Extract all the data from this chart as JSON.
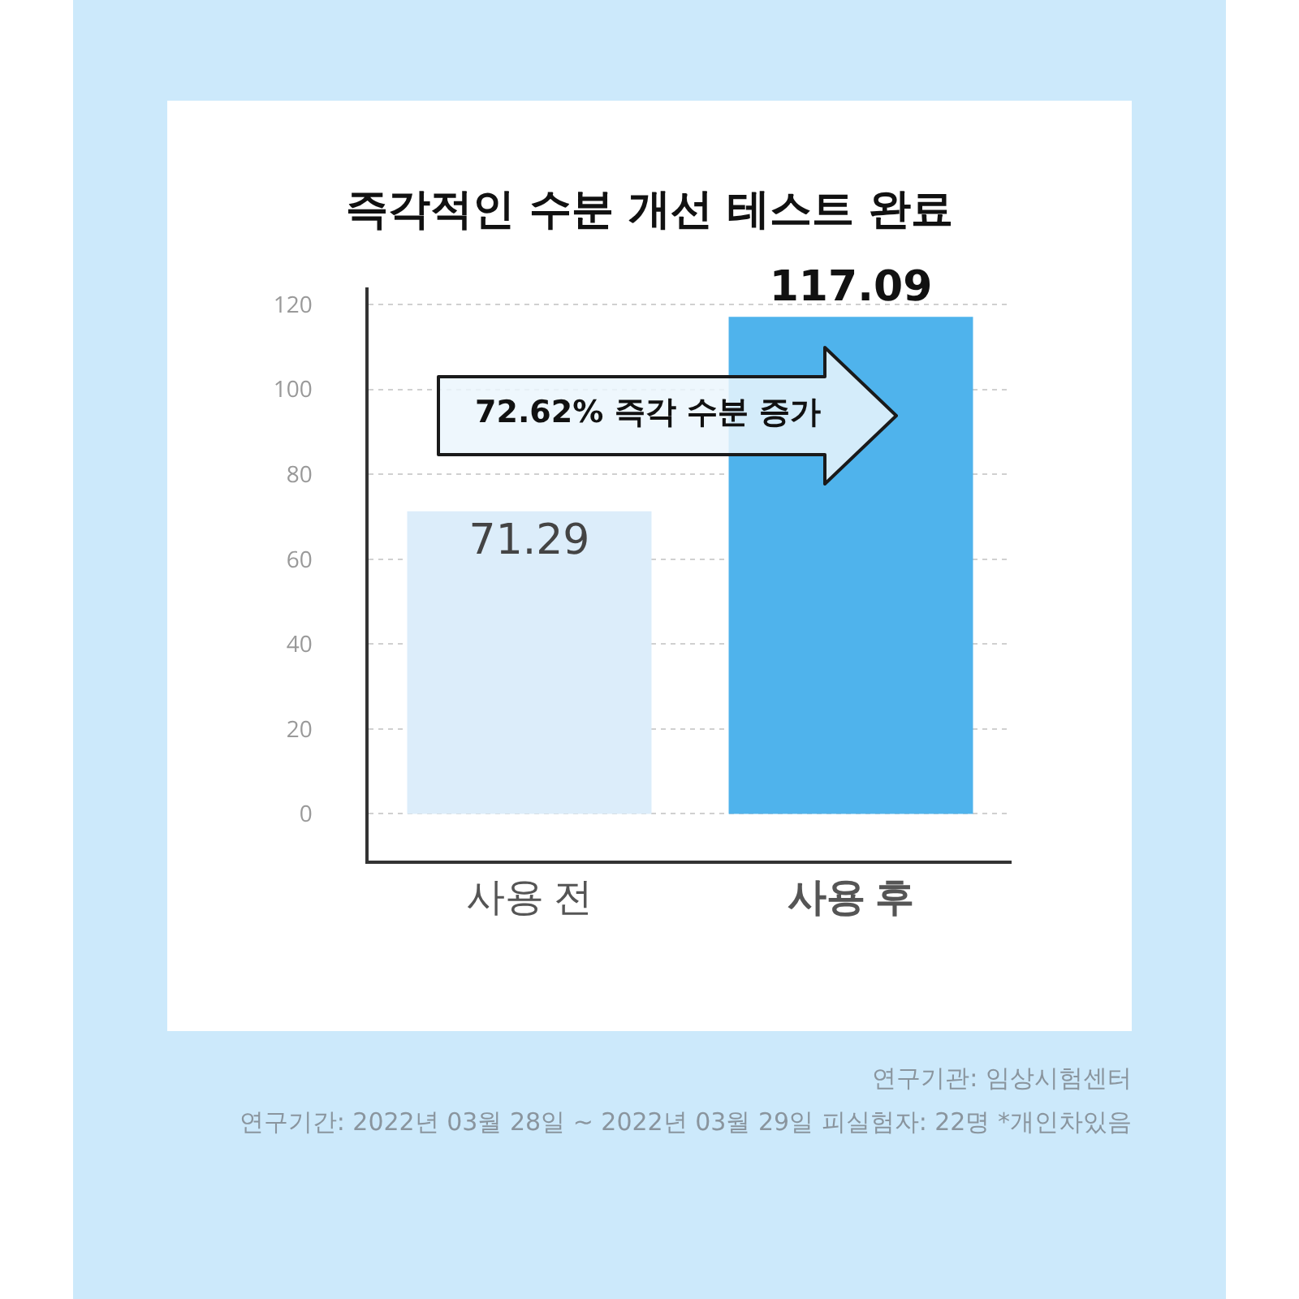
{
  "chart_data": {
    "type": "bar",
    "title": "즉각적인 수분 개선 테스트 완료",
    "categories": [
      "사용 전",
      "사용 후"
    ],
    "values": [
      71.29,
      117.09
    ],
    "colors": [
      "#dcedfa",
      "#4fb3ec"
    ],
    "ylim": [
      -11,
      124
    ],
    "yticks": [
      0,
      20,
      40,
      60,
      80,
      100,
      120
    ],
    "grid": "y",
    "data_labels": true,
    "annotations": [
      "72.62% 즉각 수분 증가",
      "연구기관: 임상시험센터",
      "연구기간:  2022년 03월 28일 ~ 2022년 03월 29일 피실험자: 22명    *개인차있음"
    ]
  }
}
